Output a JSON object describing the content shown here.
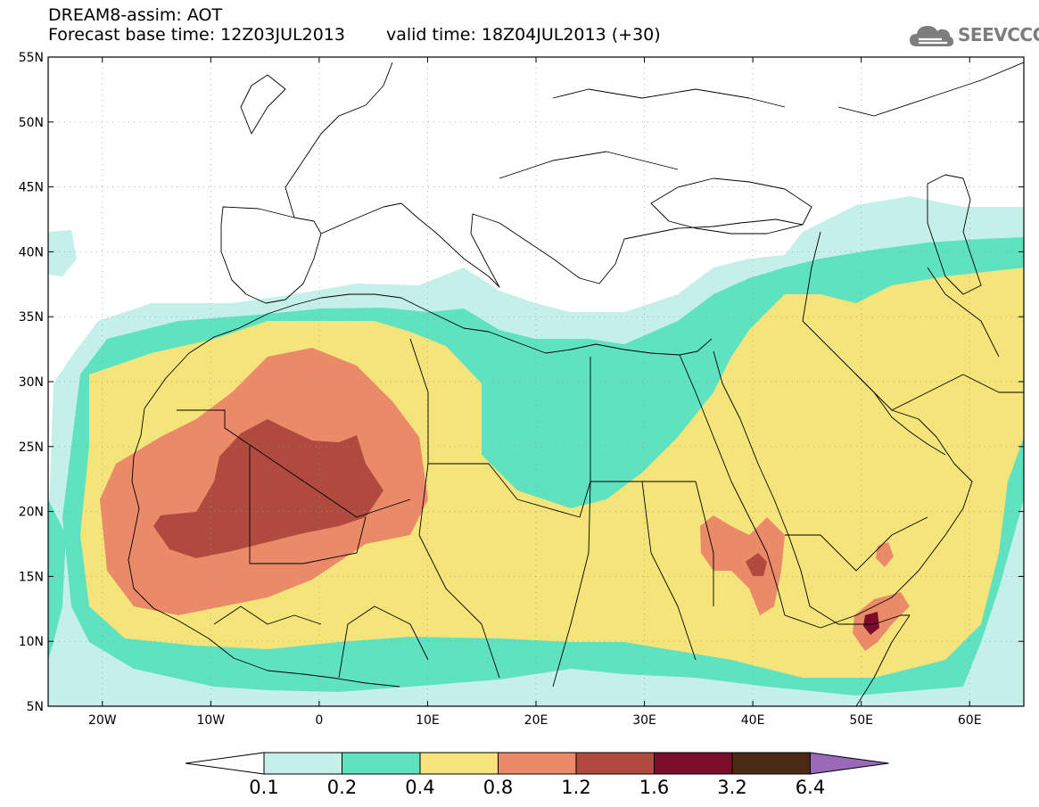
{
  "header": {
    "line1": "DREAM8-assim: AOT",
    "base_label": "Forecast base time: 12Z03JUL2013",
    "valid_label": "valid time: 18Z04JUL2013 (+30)"
  },
  "brand": {
    "text": "SEEVCCC",
    "icon": "cloud-logo-icon"
  },
  "map": {
    "projection": "lat-lon",
    "lon_range": [
      -25,
      65
    ],
    "lat_range": [
      5,
      55
    ],
    "lat_ticks": [
      {
        "value": 55,
        "label": "55N"
      },
      {
        "value": 50,
        "label": "50N"
      },
      {
        "value": 45,
        "label": "45N"
      },
      {
        "value": 40,
        "label": "40N"
      },
      {
        "value": 35,
        "label": "35N"
      },
      {
        "value": 30,
        "label": "30N"
      },
      {
        "value": 25,
        "label": "25N"
      },
      {
        "value": 20,
        "label": "20N"
      },
      {
        "value": 15,
        "label": "15N"
      },
      {
        "value": 10,
        "label": "10N"
      },
      {
        "value": 5,
        "label": "5N"
      }
    ],
    "lon_ticks": [
      {
        "value": -20,
        "label": "20W"
      },
      {
        "value": -10,
        "label": "10W"
      },
      {
        "value": 0,
        "label": "0"
      },
      {
        "value": 10,
        "label": "10E"
      },
      {
        "value": 20,
        "label": "20E"
      },
      {
        "value": 30,
        "label": "30E"
      },
      {
        "value": 40,
        "label": "40E"
      },
      {
        "value": 50,
        "label": "50E"
      },
      {
        "value": 60,
        "label": "60E"
      }
    ],
    "grid": "dotted",
    "colors": {
      "lt01": "#ffffff",
      "c01_02": "#c5efe9",
      "c02_04": "#5ee2c0",
      "c04_08": "#f5e47a",
      "c08_12": "#ea8a68",
      "c12_16": "#b04a3e",
      "c16_32": "#7a0e2a",
      "c32_64": "#4a2a14",
      "gt64": "#9a6ab8"
    }
  },
  "colorbar": {
    "levels": [
      "0.1",
      "0.2",
      "0.4",
      "0.8",
      "1.2",
      "1.6",
      "3.2",
      "6.4"
    ],
    "bins": [
      {
        "range": "<0.1",
        "color": "#ffffff"
      },
      {
        "range": "0.1-0.2",
        "color": "#c5efe9"
      },
      {
        "range": "0.2-0.4",
        "color": "#5ee2c0"
      },
      {
        "range": "0.4-0.8",
        "color": "#f5e47a"
      },
      {
        "range": "0.8-1.2",
        "color": "#ea8a68"
      },
      {
        "range": "1.2-1.6",
        "color": "#b04a3e"
      },
      {
        "range": "1.6-3.2",
        "color": "#7a0e2a"
      },
      {
        "range": "3.2-6.4",
        "color": "#4a2a14"
      },
      {
        "range": ">6.4",
        "color": "#9a6ab8"
      }
    ]
  }
}
